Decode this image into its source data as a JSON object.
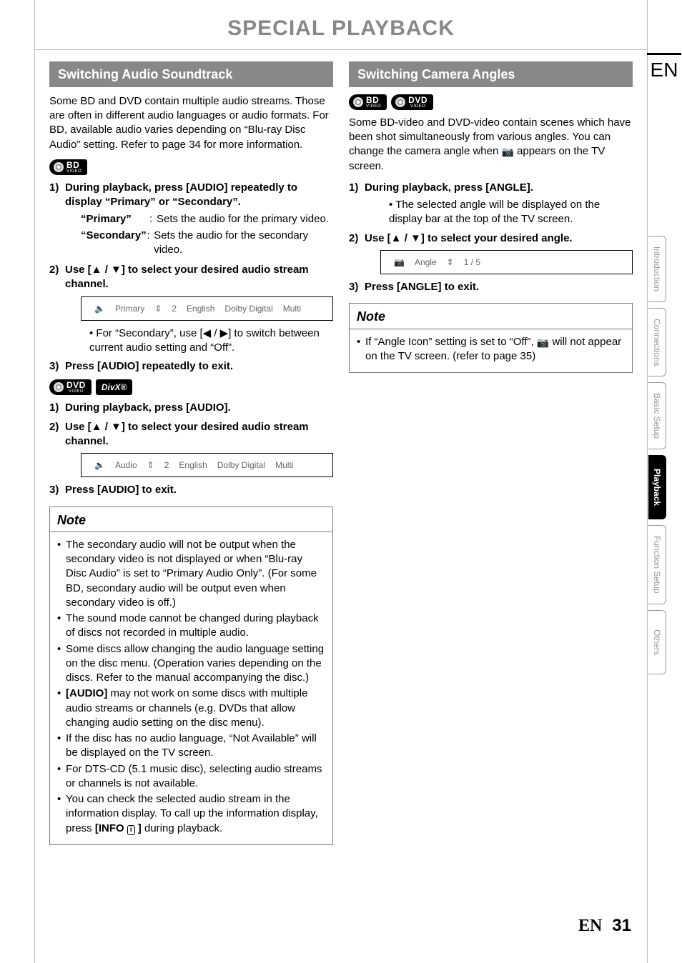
{
  "page_title": "SPECIAL PLAYBACK",
  "lang_code": "EN",
  "footer": {
    "lang": "EN",
    "page": "31"
  },
  "tabs": [
    {
      "label": "Introduction",
      "active": false
    },
    {
      "label": "Connections",
      "active": false
    },
    {
      "label": "Basic Setup",
      "active": false
    },
    {
      "label": "Playback",
      "active": true
    },
    {
      "label": "Function Setup",
      "active": false
    },
    {
      "label": "Others",
      "active": false
    }
  ],
  "badges": {
    "bd": {
      "main": "BD",
      "sub": "VIDEO"
    },
    "dvd": {
      "main": "DVD",
      "sub": "VIDEO"
    },
    "divx": "DivX®"
  },
  "left": {
    "heading": "Switching Audio Soundtrack",
    "intro": "Some BD and DVD contain multiple audio streams. Those are often in different audio languages or audio formats. For BD, available audio varies depending on “Blu-ray Disc Audio” setting. Refer to page 34 for more information.",
    "bd_steps": {
      "s1": "During playback, press [AUDIO] repeatedly to display “Primary” or “Secondary”.",
      "def_primary_term": "“Primary”",
      "def_primary_desc": "Sets the audio for the primary video.",
      "def_secondary_term": "“Secondary”",
      "def_secondary_desc": "Sets the audio for the secondary video.",
      "s2": "Use [▲ / ▼] to select your desired audio stream channel.",
      "osd1": {
        "label": "Primary",
        "num": "2",
        "lang": "English",
        "codec": "Dolby Digital",
        "ch": "Multi"
      },
      "bullet_secondary": "For “Secondary”, use [◀ / ▶] to switch between current audio setting and “Off”.",
      "s3": "Press [AUDIO] repeatedly to exit."
    },
    "dvd_steps": {
      "s1": "During playback, press [AUDIO].",
      "s2": "Use [▲ / ▼] to select your desired audio stream channel.",
      "osd2": {
        "label": "Audio",
        "num": "2",
        "lang": "English",
        "codec": "Dolby Digital",
        "ch": "Multi"
      },
      "s3": "Press [AUDIO] to exit."
    },
    "note_head": "Note",
    "notes": [
      "The secondary audio will not be output when the secondary video is not displayed or when “Blu-ray Disc Audio” is set to “Primary Audio Only”. (For some BD, secondary audio will be output even when secondary video is off.)",
      "The sound mode cannot be changed during playback of discs not recorded in multiple audio.",
      "Some discs allow changing the audio language setting on the disc menu. (Operation varies depending on the discs. Refer to the manual accompanying the disc.)",
      "[AUDIO] may not work on some discs with multiple audio streams or channels (e.g. DVDs that allow changing audio setting on the disc menu).",
      "If the disc has no audio language, “Not Available” will be displayed on the TV screen.",
      "For DTS-CD (5.1 music disc), selecting audio streams or channels is not available.",
      "You can check the selected audio stream in the information display. To call up the information display, press [INFO ⓘ] during playback."
    ]
  },
  "right": {
    "heading": "Switching Camera Angles",
    "intro_a": "Some BD-video and DVD-video contain scenes which have been shot simultaneously from various angles. You can change the camera angle when ",
    "intro_b": " appears on the TV screen.",
    "s1": "During playback, press [ANGLE].",
    "s1_bullet": "The selected angle will be displayed on the display bar at the top of the TV screen.",
    "s2": "Use [▲ / ▼] to select your desired angle.",
    "osd": {
      "label": "Angle",
      "value": "1 / 5"
    },
    "s3": "Press [ANGLE] to exit.",
    "note_head": "Note",
    "note_a": "If “Angle Icon” setting is set to “Off”, ",
    "note_b": " will not appear on the TV screen. (refer to page 35)"
  }
}
